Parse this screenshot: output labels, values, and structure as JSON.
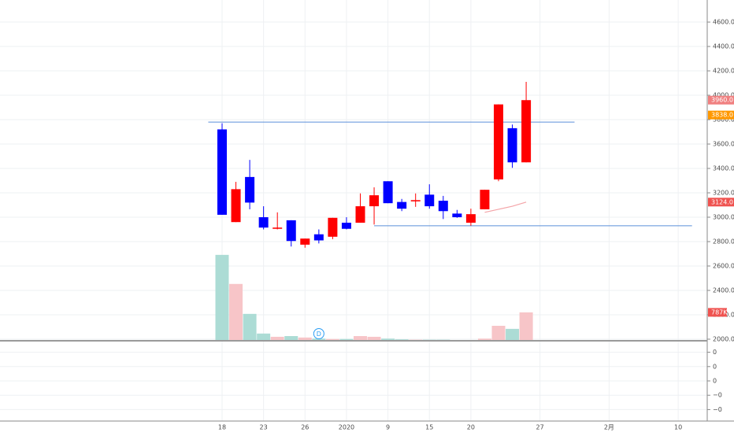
{
  "chart_data": {
    "type": "candlestick",
    "categories": [
      "18",
      null,
      null,
      "23",
      null,
      null,
      "26",
      null,
      null,
      "2020",
      null,
      null,
      "9",
      null,
      null,
      "15",
      null,
      null,
      "20",
      null,
      null,
      null,
      null,
      "27",
      null,
      null,
      null,
      null,
      "2月",
      null,
      null,
      null,
      null,
      "10"
    ],
    "open": [
      3720,
      2960,
      3330,
      3000,
      2905,
      2975,
      2775,
      2860,
      2840,
      2955,
      2955,
      3090,
      3295,
      3125,
      3130,
      3185,
      3135,
      3030,
      2955,
      3065,
      3310,
      3730,
      3450,
      null,
      null,
      null,
      null,
      null,
      null,
      null,
      null,
      null,
      null,
      null
    ],
    "high": [
      3770,
      3290,
      3470,
      3090,
      3040,
      2975,
      2825,
      2900,
      2995,
      3000,
      3195,
      3245,
      3295,
      3150,
      3195,
      3270,
      3175,
      3060,
      3070,
      3225,
      3925,
      3760,
      4110,
      null,
      null,
      null,
      null,
      null,
      null,
      null,
      null,
      null,
      null,
      null
    ],
    "low": [
      3020,
      2960,
      3065,
      2900,
      2900,
      2760,
      2750,
      2785,
      2820,
      2900,
      2955,
      2940,
      3115,
      3050,
      3085,
      3070,
      2985,
      2995,
      2930,
      3065,
      3295,
      3405,
      3450,
      null,
      null,
      null,
      null,
      null,
      null,
      null,
      null,
      null,
      null,
      null
    ],
    "close": [
      3020,
      3230,
      3120,
      2915,
      2915,
      2805,
      2825,
      2810,
      2995,
      2905,
      3090,
      3180,
      3115,
      3070,
      3140,
      3090,
      3050,
      3000,
      3025,
      3225,
      3925,
      3450,
      3960,
      null,
      null,
      null,
      null,
      null,
      null,
      null,
      null,
      null,
      null,
      null
    ],
    "volume": [
      2380,
      1575,
      745,
      200,
      110,
      130,
      90,
      60,
      50,
      50,
      130,
      110,
      60,
      40,
      30,
      30,
      30,
      20,
      20,
      60,
      415,
      330,
      787,
      null,
      null,
      null,
      null,
      null,
      null,
      null,
      null,
      null,
      null,
      null
    ],
    "volume_labels": [
      null,
      null,
      null,
      null,
      null,
      null,
      null,
      null,
      null,
      null,
      null,
      null,
      null,
      null,
      null,
      null,
      null,
      null,
      null,
      null,
      null,
      null,
      "787K",
      null,
      null,
      null,
      null,
      null,
      null,
      null,
      null,
      null,
      null,
      null
    ],
    "ma": [
      null,
      null,
      null,
      null,
      null,
      null,
      null,
      null,
      null,
      null,
      null,
      null,
      null,
      null,
      null,
      null,
      null,
      null,
      null,
      3040,
      3065,
      3090,
      3124,
      null,
      null,
      null,
      null,
      null,
      null,
      null,
      null,
      null,
      null,
      null
    ],
    "up_color": "#ff0000",
    "down_color": "#0000ff",
    "volume_up_color": "#f7c5c8",
    "volume_down_color": "#acdcd5",
    "volume_label_color": "#ef5350",
    "ma_color": "#f4a4a8",
    "ylim": [
      1987,
      4781
    ],
    "yticks": [
      {
        "value": 2000,
        "label": "2000.0"
      },
      {
        "value": 2200,
        "label": "2200.0"
      },
      {
        "value": 2400,
        "label": "2400.0"
      },
      {
        "value": 2600,
        "label": "2600.0"
      },
      {
        "value": 2800,
        "label": "2800.0"
      },
      {
        "value": 3000,
        "label": "3000.0"
      },
      {
        "value": 3200,
        "label": "3200.0"
      },
      {
        "value": 3400,
        "label": "3400.0"
      },
      {
        "value": 3600,
        "label": "3600.0"
      },
      {
        "value": 3800,
        "label": "3800.0"
      },
      {
        "value": 4000,
        "label": "4000.0"
      },
      {
        "value": 4200,
        "label": "4200.0"
      },
      {
        "value": 4400,
        "label": "4400.0"
      },
      {
        "value": 4600,
        "label": "4600.0"
      }
    ],
    "vlim": [
      0,
      2900
    ],
    "lower_ylim": [
      -0.0028,
      0.0028
    ],
    "lower_yticks": [
      {
        "value": 0.002,
        "label": "0"
      },
      {
        "value": 0.001,
        "label": "0"
      },
      {
        "value": 0,
        "label": "0"
      },
      {
        "value": -0.001,
        "label": "−0"
      },
      {
        "value": -0.002,
        "label": "−0"
      }
    ],
    "price_labels": [
      {
        "value": 3960,
        "label": "3960.0",
        "color": "#f08080"
      },
      {
        "value": 3838,
        "label": "3838.0",
        "color": "#ff9800"
      },
      {
        "value": 3124,
        "label": "3124.0",
        "color": "#ef5350"
      }
    ],
    "hlines": [
      {
        "price": 3780,
        "start": -1,
        "end": 25.5,
        "color": "#5b8fd9"
      },
      {
        "price": 2930,
        "start": 11,
        "end": 34,
        "color": "#5b8fd9"
      }
    ],
    "events": [
      {
        "label": "D",
        "index": 7
      }
    ],
    "grid": true
  }
}
